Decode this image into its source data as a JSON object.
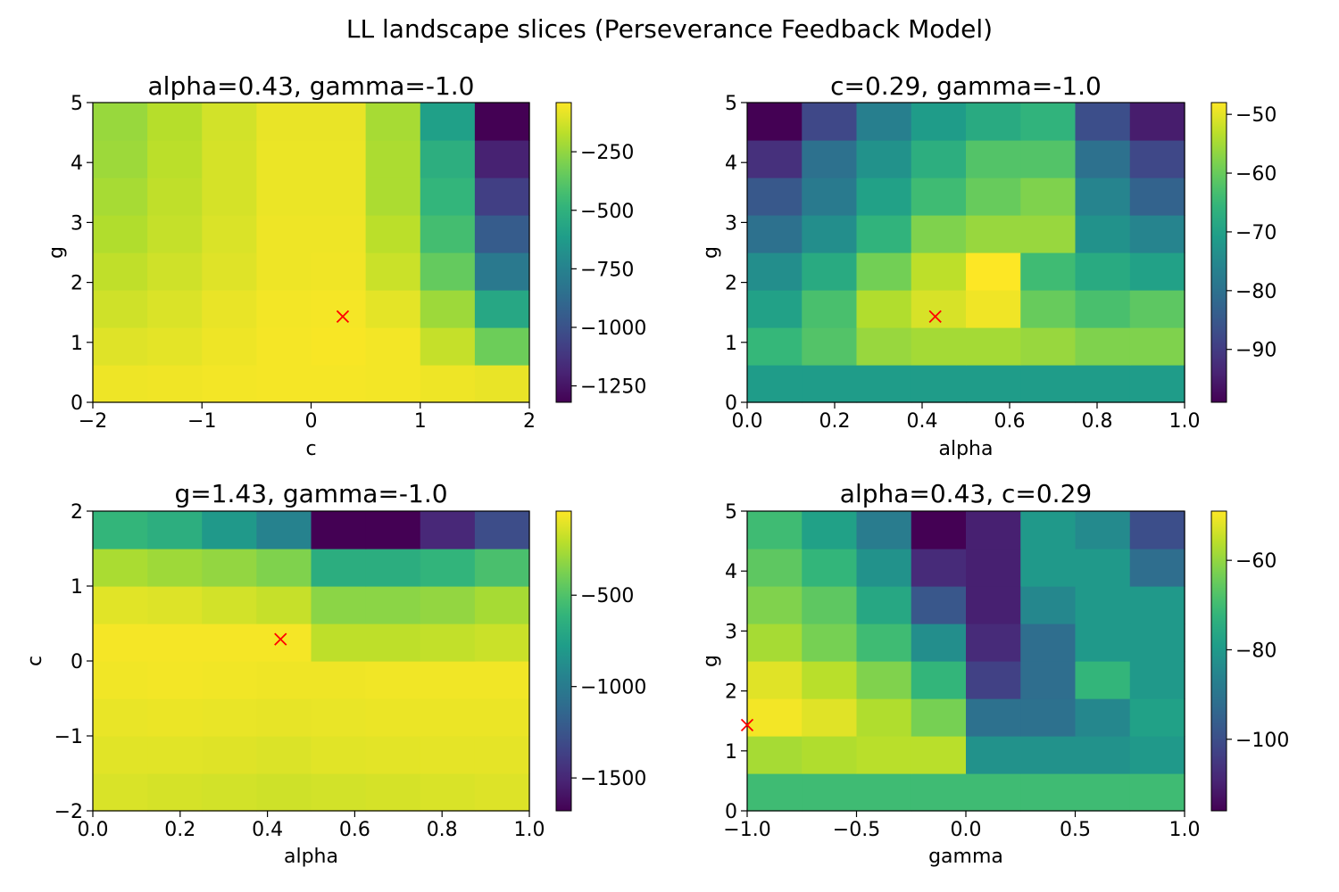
{
  "suptitle": "LL landscape slices (Perseverance Feedback Model)",
  "colormap": "viridis",
  "marker_color": "#ff0000",
  "chart_data": [
    {
      "type": "heatmap",
      "title": "alpha=0.43, gamma=-1.0",
      "xlabel": "c",
      "ylabel": "g",
      "xlim": [
        -2,
        2
      ],
      "ylim": [
        0,
        5
      ],
      "xticks": [
        -2,
        -1,
        0,
        1,
        2
      ],
      "xtick_labels": [
        "−2",
        "−1",
        "0",
        "1",
        "2"
      ],
      "yticks": [
        0,
        1,
        2,
        3,
        4,
        5
      ],
      "ytick_labels": [
        "0",
        "1",
        "2",
        "3",
        "4",
        "5"
      ],
      "vmin": -1320,
      "vmax": -40,
      "cbar_ticks": [
        -250,
        -500,
        -750,
        -1000,
        -1250
      ],
      "cbar_tick_labels": [
        "−250",
        "−500",
        "−750",
        "−1000",
        "−1250"
      ],
      "marker": {
        "x": 0.29,
        "y": 1.43
      },
      "grid": [
        [
          -70,
          -65,
          -60,
          -55,
          -55,
          -60,
          -70,
          -80
        ],
        [
          -100,
          -90,
          -70,
          -55,
          -50,
          -60,
          -150,
          -330
        ],
        [
          -130,
          -110,
          -80,
          -60,
          -55,
          -90,
          -230,
          -560
        ],
        [
          -160,
          -130,
          -100,
          -70,
          -65,
          -140,
          -350,
          -800
        ],
        [
          -190,
          -150,
          -110,
          -70,
          -70,
          -170,
          -430,
          -950
        ],
        [
          -210,
          -160,
          -120,
          -75,
          -75,
          -200,
          -480,
          -1080
        ],
        [
          -230,
          -170,
          -120,
          -75,
          -75,
          -200,
          -520,
          -1200
        ],
        [
          -240,
          -180,
          -125,
          -80,
          -80,
          -210,
          -600,
          -1320
        ]
      ]
    },
    {
      "type": "heatmap",
      "title": "c=0.29, gamma=-1.0",
      "xlabel": "alpha",
      "ylabel": "g",
      "xlim": [
        0,
        1
      ],
      "ylim": [
        0,
        5
      ],
      "xticks": [
        0,
        0.2,
        0.4,
        0.6,
        0.8,
        1.0
      ],
      "xtick_labels": [
        "0.0",
        "0.2",
        "0.4",
        "0.6",
        "0.8",
        "1.0"
      ],
      "yticks": [
        0,
        1,
        2,
        3,
        4,
        5
      ],
      "ytick_labels": [
        "0",
        "1",
        "2",
        "3",
        "4",
        "5"
      ],
      "vmin": -99,
      "vmax": -48,
      "cbar_ticks": [
        -50,
        -60,
        -70,
        -80,
        -90
      ],
      "cbar_tick_labels": [
        "−50",
        "−60",
        "−70",
        "−80",
        "−90"
      ],
      "marker": {
        "x": 0.43,
        "y": 1.43
      },
      "grid": [
        [
          -71,
          -71,
          -71,
          -71,
          -71,
          -71,
          -71,
          -71
        ],
        [
          -65,
          -62,
          -56,
          -55,
          -55,
          -56,
          -58,
          -58
        ],
        [
          -70,
          -63,
          -54,
          -51,
          -49,
          -60,
          -63,
          -61
        ],
        [
          -74,
          -68,
          -59,
          -53,
          -48,
          -64,
          -68,
          -70
        ],
        [
          -80,
          -74,
          -66,
          -58,
          -56,
          -56,
          -73,
          -76
        ],
        [
          -85,
          -78,
          -70,
          -64,
          -60,
          -58,
          -76,
          -83
        ],
        [
          -92,
          -80,
          -73,
          -67,
          -62,
          -62,
          -80,
          -88
        ],
        [
          -99,
          -88,
          -77,
          -71,
          -68,
          -66,
          -87,
          -95
        ]
      ]
    },
    {
      "type": "heatmap",
      "title": "g=1.43, gamma=-1.0",
      "xlabel": "alpha",
      "ylabel": "c",
      "xlim": [
        0,
        1
      ],
      "ylim": [
        -2,
        2
      ],
      "xticks": [
        0,
        0.2,
        0.4,
        0.6,
        0.8,
        1.0
      ],
      "xtick_labels": [
        "0.0",
        "0.2",
        "0.4",
        "0.6",
        "0.8",
        "1.0"
      ],
      "yticks": [
        -2,
        -1,
        0,
        1,
        2
      ],
      "ytick_labels": [
        "−2",
        "−1",
        "0",
        "1",
        "2"
      ],
      "vmin": -1680,
      "vmax": -40,
      "cbar_ticks": [
        -500,
        -1000,
        -1500
      ],
      "cbar_tick_labels": [
        "−500",
        "−1000",
        "−1500"
      ],
      "marker": {
        "x": 0.43,
        "y": 0.29
      },
      "grid": [
        [
          -130,
          -140,
          -150,
          -160,
          -150,
          -140,
          -130,
          -120
        ],
        [
          -110,
          -110,
          -115,
          -125,
          -110,
          -105,
          -100,
          -100
        ],
        [
          -90,
          -85,
          -90,
          -95,
          -90,
          -85,
          -85,
          -85
        ],
        [
          -70,
          -65,
          -70,
          -75,
          -75,
          -70,
          -70,
          -70
        ],
        [
          -60,
          -60,
          -60,
          -60,
          -200,
          -200,
          -190,
          -170
        ],
        [
          -110,
          -120,
          -150,
          -180,
          -330,
          -330,
          -310,
          -260
        ],
        [
          -250,
          -280,
          -310,
          -360,
          -660,
          -660,
          -610,
          -520
        ],
        [
          -600,
          -650,
          -800,
          -950,
          -1680,
          -1680,
          -1500,
          -1300
        ]
      ]
    },
    {
      "type": "heatmap",
      "title": "alpha=0.43, c=0.29",
      "xlabel": "gamma",
      "ylabel": "g",
      "xlim": [
        -1,
        1
      ],
      "ylim": [
        0,
        5
      ],
      "xticks": [
        -1,
        -0.5,
        0,
        0.5,
        1
      ],
      "xtick_labels": [
        "−1.0",
        "−0.5",
        "0.0",
        "0.5",
        "1.0"
      ],
      "yticks": [
        0,
        1,
        2,
        3,
        4,
        5
      ],
      "ytick_labels": [
        "0",
        "1",
        "2",
        "3",
        "4",
        "5"
      ],
      "vmin": -116,
      "vmax": -49,
      "cbar_ticks": [
        -60,
        -80,
        -100
      ],
      "cbar_tick_labels": [
        "−60",
        "−80",
        "−100"
      ],
      "marker": {
        "x": -1.0,
        "y": 1.43
      },
      "grid": [
        [
          -70,
          -70,
          -70,
          -70,
          -70,
          -70,
          -70,
          -70
        ],
        [
          -58,
          -57,
          -56,
          -56,
          -82,
          -82,
          -82,
          -80
        ],
        [
          -50,
          -52,
          -57,
          -63,
          -91,
          -91,
          -85,
          -78
        ],
        [
          -52,
          -56,
          -62,
          -72,
          -103,
          -92,
          -72,
          -80
        ],
        [
          -58,
          -63,
          -70,
          -83,
          -108,
          -92,
          -80,
          -80
        ],
        [
          -62,
          -66,
          -76,
          -98,
          -110,
          -85,
          -80,
          -80
        ],
        [
          -66,
          -72,
          -82,
          -108,
          -110,
          -80,
          -80,
          -92
        ],
        [
          -70,
          -78,
          -88,
          -116,
          -110,
          -80,
          -84,
          -100
        ]
      ]
    }
  ]
}
